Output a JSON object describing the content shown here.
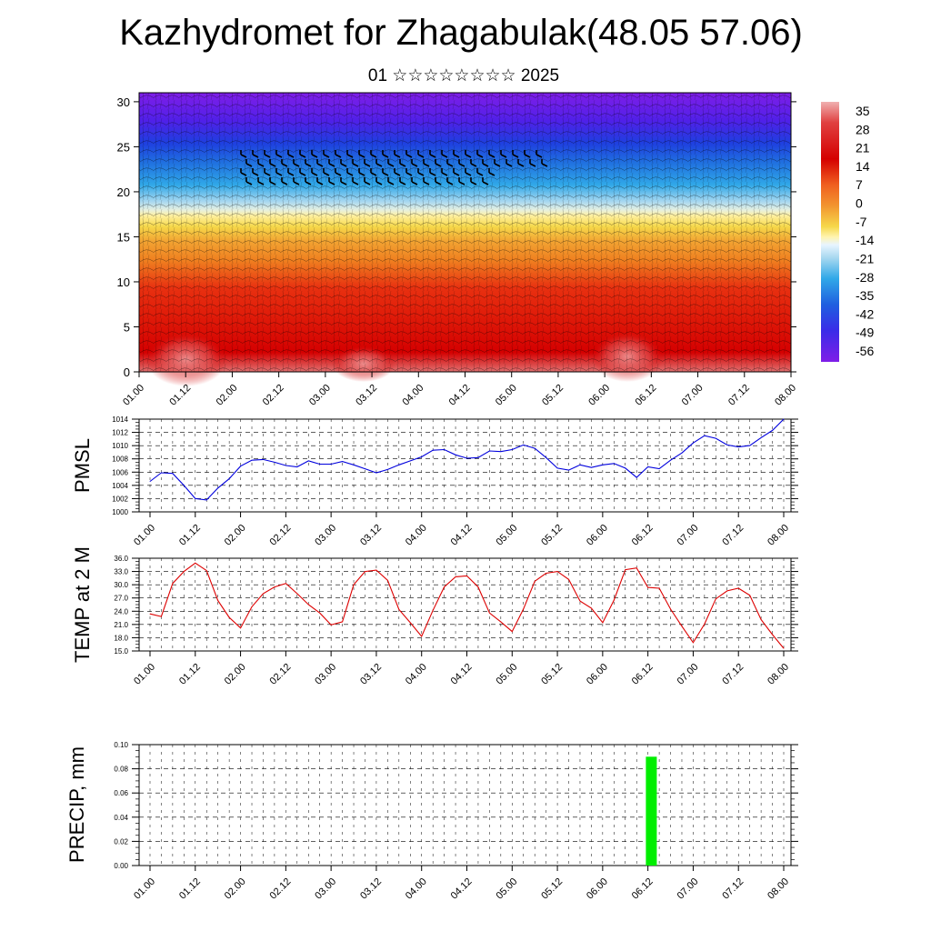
{
  "title": "Kazhydromet for Zhagabulak(48.05 57.06)",
  "subtitle": "01 ☆☆☆☆☆☆☆☆ 2025",
  "chart_data": [
    {
      "type": "heatmap",
      "x_ticks": [
        "01.00",
        "01.12",
        "02.00",
        "02.12",
        "03.00",
        "03.12",
        "04.00",
        "04.12",
        "05.00",
        "05.12",
        "06.00",
        "06.12",
        "07.00",
        "07.12",
        "08.00"
      ],
      "y_ticks": [
        0,
        5,
        10,
        15,
        20,
        25,
        30
      ],
      "ylim": [
        0,
        31
      ],
      "colorbar_labels": [
        "35",
        "28",
        "21",
        "14",
        "7",
        "0",
        "-7",
        "-14",
        "-21",
        "-28",
        "-35",
        "-42",
        "-49",
        "-56"
      ],
      "colors": {
        "hot": "#e07070",
        "red": "#d50000",
        "orange": "#f08020",
        "yellow": "#f6d84a",
        "lightblue": "#a8d8f0",
        "cyan": "#30a8e8",
        "blue": "#2050e0",
        "violet": "#7f1ee8"
      }
    },
    {
      "type": "line",
      "ylabel": "PMSL",
      "ylim": [
        1000,
        1014
      ],
      "y_ticks": [
        "1000",
        "1002",
        "1004",
        "1006",
        "1008",
        "1010",
        "1012",
        "1014"
      ],
      "x_ticks": [
        "01.00",
        "01.12",
        "02.00",
        "02.12",
        "03.00",
        "03.12",
        "04.00",
        "04.12",
        "05.00",
        "05.12",
        "06.00",
        "06.12",
        "07.00",
        "07.12",
        "08.00"
      ],
      "color": "#0000dd",
      "values": [
        1004.6,
        1005.9,
        1005.8,
        1004.0,
        1002.0,
        1001.8,
        1003.6,
        1005.0,
        1006.9,
        1007.8,
        1007.9,
        1007.5,
        1007.0,
        1006.8,
        1007.7,
        1007.2,
        1007.2,
        1007.6,
        1007.1,
        1006.5,
        1005.9,
        1006.4,
        1007.1,
        1007.7,
        1008.3,
        1009.3,
        1009.4,
        1008.6,
        1008.1,
        1008.2,
        1009.2,
        1009.1,
        1009.4,
        1010.1,
        1009.6,
        1008.2,
        1006.6,
        1006.3,
        1007.1,
        1006.7,
        1007.1,
        1007.3,
        1006.6,
        1005.2,
        1006.8,
        1006.5,
        1007.8,
        1008.9,
        1010.4,
        1011.5,
        1011.1,
        1010.1,
        1009.8,
        1010.0,
        1011.2,
        1012.3,
        1014.0
      ]
    },
    {
      "type": "line",
      "ylabel": "TEMP at 2 M",
      "ylim": [
        15,
        36
      ],
      "y_ticks": [
        "15.0",
        "18.0",
        "21.0",
        "24.0",
        "27.0",
        "30.0",
        "33.0",
        "36.0"
      ],
      "x_ticks": [
        "01.00",
        "01.12",
        "02.00",
        "02.12",
        "03.00",
        "03.12",
        "04.00",
        "04.12",
        "05.00",
        "05.12",
        "06.00",
        "06.12",
        "07.00",
        "07.12",
        "08.00"
      ],
      "color": "#dd0000",
      "values": [
        23.4,
        22.8,
        30.3,
        33.0,
        34.9,
        33.2,
        26.4,
        22.6,
        20.2,
        25.0,
        28.0,
        29.5,
        30.3,
        28.0,
        25.5,
        23.6,
        20.9,
        21.6,
        30.0,
        33.0,
        33.3,
        31.0,
        24.4,
        21.4,
        18.3,
        24.2,
        29.5,
        31.8,
        32.0,
        29.5,
        23.6,
        21.6,
        19.4,
        24.5,
        30.8,
        32.6,
        33.0,
        31.2,
        26.3,
        24.7,
        21.4,
        26.5,
        33.4,
        33.8,
        29.4,
        29.2,
        24.5,
        20.6,
        16.9,
        21.1,
        26.8,
        28.6,
        29.2,
        27.6,
        22.1,
        18.7,
        15.6
      ]
    },
    {
      "type": "bar",
      "ylabel": "PRECIP, mm",
      "ylim": [
        0,
        0.1
      ],
      "y_ticks": [
        "0.00",
        "0.02",
        "0.04",
        "0.06",
        "0.08",
        "0.10"
      ],
      "x_ticks": [
        "01.00",
        "01.12",
        "02.00",
        "02.12",
        "03.00",
        "03.12",
        "04.00",
        "04.12",
        "05.00",
        "05.12",
        "06.00",
        "06.12",
        "07.00",
        "07.12",
        "08.00"
      ],
      "color": "#00ee00",
      "bars": [
        {
          "x": 44.3,
          "value": 0.09
        }
      ]
    }
  ]
}
